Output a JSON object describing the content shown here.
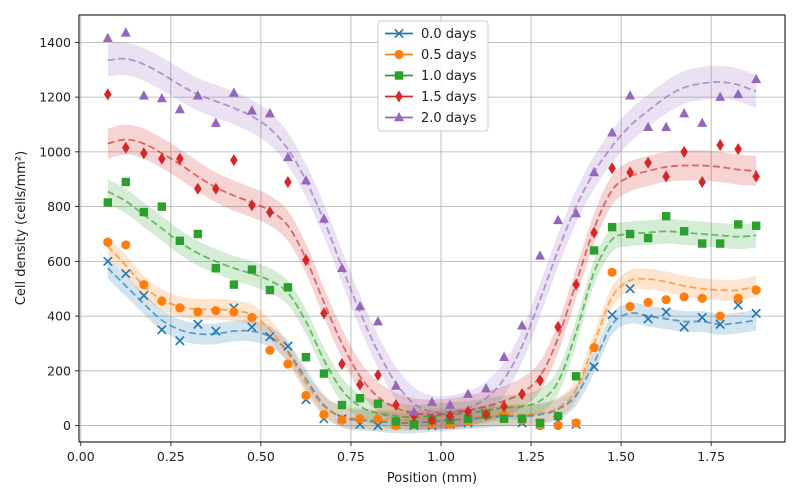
{
  "chart_data": {
    "type": "scatter",
    "title": "",
    "xlabel": "Position (mm)",
    "ylabel": "Cell density (cells/mm²)",
    "xlim": [
      -0.005,
      1.955
    ],
    "ylim": [
      -60,
      1500
    ],
    "x_ticks": [
      0.0,
      0.25,
      0.5,
      0.75,
      1.0,
      1.25,
      1.5,
      1.75
    ],
    "x_tick_labels": [
      "0.00",
      "0.25",
      "0.50",
      "0.75",
      "1.00",
      "1.25",
      "1.50",
      "1.75"
    ],
    "y_ticks": [
      0,
      200,
      400,
      600,
      800,
      1000,
      1200,
      1400
    ],
    "y_tick_labels": [
      "0",
      "200",
      "400",
      "600",
      "800",
      "1000",
      "1200",
      "1400"
    ],
    "grid": true,
    "legend_position": "top-center",
    "x": [
      0.075,
      0.125,
      0.175,
      0.225,
      0.275,
      0.325,
      0.375,
      0.425,
      0.475,
      0.525,
      0.575,
      0.625,
      0.675,
      0.725,
      0.775,
      0.825,
      0.875,
      0.925,
      0.975,
      1.025,
      1.075,
      1.125,
      1.175,
      1.225,
      1.275,
      1.325,
      1.375,
      1.425,
      1.475,
      1.525,
      1.575,
      1.625,
      1.675,
      1.725,
      1.775,
      1.825,
      1.875
    ],
    "series": [
      {
        "name": "0.0 days",
        "color": "#1f77b4",
        "marker": "x",
        "values": [
          600,
          555,
          475,
          350,
          310,
          370,
          345,
          430,
          360,
          325,
          290,
          95,
          25,
          25,
          5,
          0,
          5,
          0,
          0,
          5,
          10,
          45,
          30,
          10,
          5,
          20,
          5,
          215,
          405,
          500,
          390,
          415,
          360,
          395,
          370,
          440,
          410
        ],
        "fit": [
          575,
          510,
          445,
          385,
          350,
          335,
          335,
          345,
          345,
          325,
          270,
          170,
          75,
          30,
          20,
          15,
          10,
          10,
          15,
          20,
          25,
          30,
          35,
          35,
          40,
          60,
          110,
          230,
          370,
          410,
          400,
          390,
          380,
          380,
          370,
          375,
          385
        ],
        "band": 38
      },
      {
        "name": "0.5 days",
        "color": "#ff7f0e",
        "marker": "o",
        "values": [
          670,
          660,
          515,
          455,
          430,
          415,
          420,
          415,
          395,
          275,
          225,
          110,
          40,
          20,
          25,
          25,
          0,
          5,
          5,
          5,
          15,
          45,
          40,
          20,
          0,
          0,
          10,
          285,
          560,
          435,
          450,
          460,
          470,
          465,
          400,
          465,
          495
        ],
        "fit": [
          655,
          585,
          510,
          460,
          435,
          425,
          425,
          420,
          405,
          350,
          265,
          155,
          70,
          35,
          25,
          20,
          20,
          20,
          25,
          25,
          30,
          35,
          40,
          40,
          45,
          65,
          130,
          300,
          470,
          530,
          535,
          525,
          510,
          500,
          495,
          495,
          510
        ],
        "band": 38
      },
      {
        "name": "1.0 days",
        "color": "#2ca02c",
        "marker": "s",
        "values": [
          815,
          890,
          780,
          800,
          675,
          700,
          575,
          515,
          570,
          495,
          505,
          250,
          190,
          75,
          100,
          80,
          15,
          5,
          20,
          20,
          25,
          40,
          25,
          25,
          10,
          35,
          180,
          640,
          725,
          700,
          685,
          765,
          710,
          665,
          665,
          735,
          730
        ],
        "fit": [
          855,
          820,
          770,
          720,
          670,
          630,
          600,
          575,
          555,
          530,
          485,
          380,
          240,
          130,
          70,
          45,
          35,
          30,
          35,
          40,
          45,
          55,
          65,
          70,
          90,
          160,
          340,
          560,
          680,
          700,
          705,
          710,
          705,
          700,
          695,
          690,
          695
        ],
        "band": 45
      },
      {
        "name": "1.5 days",
        "color": "#d62728",
        "marker": "d",
        "values": [
          1210,
          1015,
          995,
          975,
          975,
          865,
          865,
          970,
          805,
          780,
          890,
          605,
          410,
          225,
          150,
          185,
          75,
          35,
          20,
          35,
          50,
          40,
          70,
          115,
          165,
          360,
          515,
          705,
          940,
          925,
          960,
          910,
          1000,
          890,
          1025,
          1010,
          910
        ],
        "fit": [
          1030,
          1045,
          1030,
          995,
          955,
          910,
          870,
          840,
          815,
          785,
          730,
          610,
          450,
          300,
          180,
          105,
          65,
          45,
          40,
          45,
          55,
          70,
          90,
          120,
          180,
          320,
          520,
          720,
          860,
          910,
          930,
          945,
          950,
          950,
          945,
          935,
          930
        ],
        "band": 55
      },
      {
        "name": "2.0 days",
        "color": "#9467bd",
        "marker": "^",
        "values": [
          1415,
          1435,
          1205,
          1195,
          1155,
          1205,
          1105,
          1215,
          1150,
          1140,
          980,
          895,
          755,
          575,
          435,
          380,
          145,
          50,
          85,
          75,
          115,
          135,
          250,
          365,
          620,
          750,
          775,
          925,
          1070,
          1205,
          1090,
          1090,
          1140,
          1105,
          1200,
          1210,
          1265
        ],
        "fit": [
          1335,
          1340,
          1320,
          1285,
          1245,
          1210,
          1185,
          1160,
          1130,
          1085,
          1010,
          895,
          750,
          580,
          415,
          270,
          155,
          80,
          50,
          50,
          65,
          100,
          170,
          290,
          460,
          640,
          800,
          925,
          1020,
          1095,
          1150,
          1200,
          1235,
          1250,
          1255,
          1245,
          1220
        ],
        "band": 60
      }
    ]
  }
}
